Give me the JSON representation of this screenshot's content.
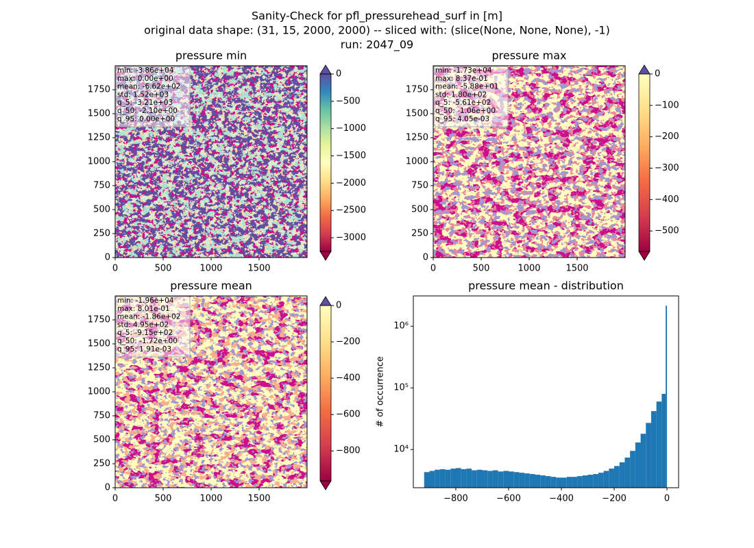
{
  "figure_title": [
    "Sanity-Check for pfl_pressurehead_surf in [m]",
    "original data shape: (31, 15, 2000, 2000) -- sliced with: (slice(None, None, None), -1)",
    "run: 2047_09"
  ],
  "chart_data": [
    {
      "type": "heatmap",
      "title": "pressure min",
      "stats": [
        "min: -3.86e+04",
        "max: 0.00e+00",
        "mean: -6.62e+02",
        "std: 1.52e+03",
        "q_5: -3.21e+03",
        "q_50: -2.10e+00",
        "q_95: 0.00e+00"
      ],
      "xlim": [
        0,
        2000
      ],
      "ylim": [
        0,
        2000
      ],
      "xticks": [
        0,
        500,
        1000,
        1500
      ],
      "yticks": [
        0,
        250,
        500,
        750,
        1000,
        1250,
        1500,
        1750
      ],
      "background_color": "#5e4fa2",
      "speckle_colors": [
        "#66c2a5",
        "#abdda4",
        "#9e0142",
        "#fdae61"
      ],
      "colorbar": {
        "lim": [
          -3250,
          0
        ],
        "ticks": [
          {
            "value": 0,
            "label": "0"
          },
          {
            "value": -500,
            "label": "−500"
          },
          {
            "value": -1000,
            "label": "−1000"
          },
          {
            "value": -1500,
            "label": "−1500"
          },
          {
            "value": -2000,
            "label": "−2000"
          },
          {
            "value": -2500,
            "label": "−2500"
          },
          {
            "value": -3000,
            "label": "−3000"
          }
        ],
        "colors": [
          "#9e0142",
          "#d53e4f",
          "#f46d43",
          "#fdae61",
          "#fee08b",
          "#ffffbf",
          "#e6f598",
          "#abdda4",
          "#66c2a5",
          "#3288bd",
          "#5e4fa2"
        ],
        "under_color": "#9e0142",
        "over_color": "#5e4fa2"
      }
    },
    {
      "type": "heatmap",
      "title": "pressure max",
      "stats": [
        "min: -1.73e+04",
        "max: 8.37e-01",
        "mean: -5.88e+01",
        "std: 1.80e+02",
        "q_5: -5.61e+02",
        "q_50: -1.06e+00",
        "q_95: 4.05e-03"
      ],
      "xlim": [
        0,
        2000
      ],
      "ylim": [
        0,
        2000
      ],
      "xticks": [
        0,
        500,
        1000,
        1500
      ],
      "yticks": [
        0,
        250,
        500,
        750,
        1000,
        1250,
        1500,
        1750
      ],
      "background_color": "#ffffbf",
      "speckle_colors": [
        "#9e0142",
        "#5e4fa2",
        "#d53e4f"
      ],
      "colorbar": {
        "lim": [
          -565,
          0
        ],
        "ticks": [
          {
            "value": 0,
            "label": "0"
          },
          {
            "value": -100,
            "label": "−100"
          },
          {
            "value": -200,
            "label": "−200"
          },
          {
            "value": -300,
            "label": "−300"
          },
          {
            "value": -400,
            "label": "−400"
          },
          {
            "value": -500,
            "label": "−500"
          }
        ],
        "colors": [
          "#9e0142",
          "#d53e4f",
          "#f46d43",
          "#fdae61",
          "#fee08b",
          "#ffffbf"
        ],
        "under_color": "#9e0142",
        "over_color": "#5e4fa2"
      }
    },
    {
      "type": "heatmap",
      "title": "pressure mean",
      "stats": [
        "min: -1.96e+04",
        "max: 8.01e-01",
        "mean: -1.86e+02",
        "std: 4.95e+02",
        "q_5: -9.15e+02",
        "q_50: -1.72e+00",
        "q_95: 1.91e-03"
      ],
      "xlim": [
        0,
        2000
      ],
      "ylim": [
        0,
        2000
      ],
      "xticks": [
        0,
        500,
        1000,
        1500
      ],
      "yticks": [
        0,
        250,
        500,
        750,
        1000,
        1250,
        1500,
        1750
      ],
      "background_color": "#ffffbf",
      "speckle_colors": [
        "#9e0142",
        "#f46d43",
        "#5e4fa2"
      ],
      "colorbar": {
        "lim": [
          -965,
          0
        ],
        "ticks": [
          {
            "value": 0,
            "label": "0"
          },
          {
            "value": -200,
            "label": "−200"
          },
          {
            "value": -400,
            "label": "−400"
          },
          {
            "value": -600,
            "label": "−600"
          },
          {
            "value": -800,
            "label": "−800"
          }
        ],
        "colors": [
          "#9e0142",
          "#d53e4f",
          "#f46d43",
          "#fdae61",
          "#fee08b",
          "#ffffbf"
        ],
        "under_color": "#9e0142",
        "over_color": "#5e4fa2"
      }
    },
    {
      "type": "histogram",
      "title": "pressure mean - distribution",
      "ylabel": "# of occurrence",
      "color": "#1f77b4",
      "yscale": "log",
      "bins": [
        -920,
        -900,
        -880,
        -860,
        -840,
        -820,
        -800,
        -780,
        -760,
        -740,
        -720,
        -700,
        -680,
        -660,
        -640,
        -620,
        -600,
        -580,
        -560,
        -540,
        -520,
        -500,
        -480,
        -460,
        -440,
        -420,
        -400,
        -380,
        -360,
        -340,
        -320,
        -300,
        -280,
        -260,
        -240,
        -220,
        -200,
        -180,
        -160,
        -140,
        -120,
        -100,
        -80,
        -60,
        -40,
        -20,
        -5,
        0
      ],
      "values": [
        4300,
        4500,
        4700,
        4800,
        4700,
        4900,
        5000,
        4800,
        4900,
        4600,
        4700,
        4600,
        4500,
        4600,
        4400,
        4500,
        4400,
        4300,
        4200,
        4100,
        4000,
        3900,
        3800,
        3700,
        3600,
        3500,
        3500,
        3600,
        3600,
        3700,
        3800,
        3900,
        4000,
        4200,
        4500,
        4900,
        5400,
        6200,
        7400,
        9500,
        13000,
        18000,
        27000,
        42000,
        60000,
        80000,
        2150000
      ],
      "xlim": [
        -961,
        44
      ],
      "ylim": [
        2400,
        3100000
      ],
      "xticks": [
        {
          "value": -800,
          "label": "−800"
        },
        {
          "value": -600,
          "label": "−600"
        },
        {
          "value": -400,
          "label": "−400"
        },
        {
          "value": -200,
          "label": "−200"
        },
        {
          "value": 0,
          "label": "0"
        }
      ],
      "yticks": [
        {
          "value": 10000,
          "label": "10⁴"
        },
        {
          "value": 100000,
          "label": "10⁵"
        },
        {
          "value": 1000000,
          "label": "10⁶"
        }
      ]
    }
  ]
}
